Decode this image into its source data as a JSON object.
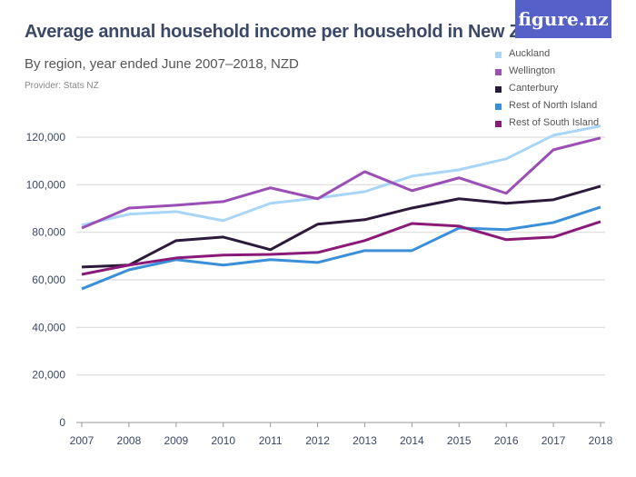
{
  "logo": "figure.nz",
  "chart_data": {
    "type": "line",
    "title": "Average annual household income per household in New Zealand",
    "subtitle": "By region, year ended June 2007–2018, NZD",
    "provider": "Provider: Stats NZ",
    "x": [
      "2007",
      "2008",
      "2009",
      "2010",
      "2011",
      "2012",
      "2013",
      "2014",
      "2015",
      "2016",
      "2017",
      "2018"
    ],
    "ylim": [
      0,
      120000
    ],
    "yticks": [
      "0",
      "20,000",
      "40,000",
      "60,000",
      "80,000",
      "100,000",
      "120,000"
    ],
    "ytick_values": [
      0,
      20000,
      40000,
      60000,
      80000,
      100000,
      120000
    ],
    "grid": true,
    "legend_position": "top-right",
    "series": [
      {
        "name": "Auckland",
        "color": "#a9d5f8",
        "values": [
          83000,
          87600,
          88700,
          84900,
          92200,
          94400,
          97100,
          103600,
          106300,
          110900,
          120800,
          124700
        ]
      },
      {
        "name": "Wellington",
        "color": "#9b4fb5",
        "values": [
          81800,
          90200,
          91400,
          92900,
          98700,
          94100,
          105500,
          97500,
          102900,
          96400,
          114700,
          119700
        ]
      },
      {
        "name": "Canterbury",
        "color": "#2c1a3a",
        "values": [
          65400,
          66200,
          76500,
          78000,
          72700,
          83400,
          85300,
          90200,
          94100,
          92200,
          93700,
          99400
        ]
      },
      {
        "name": "Rest of North Island",
        "color": "#3a8fd8",
        "values": [
          56200,
          64200,
          68500,
          66200,
          68500,
          67300,
          72300,
          72300,
          81800,
          81100,
          84100,
          90600
        ]
      },
      {
        "name": "Rest of South Island",
        "color": "#8a1a78",
        "values": [
          62300,
          66200,
          69200,
          70400,
          70700,
          71500,
          76500,
          83700,
          82600,
          76900,
          78000,
          84500
        ]
      }
    ]
  }
}
